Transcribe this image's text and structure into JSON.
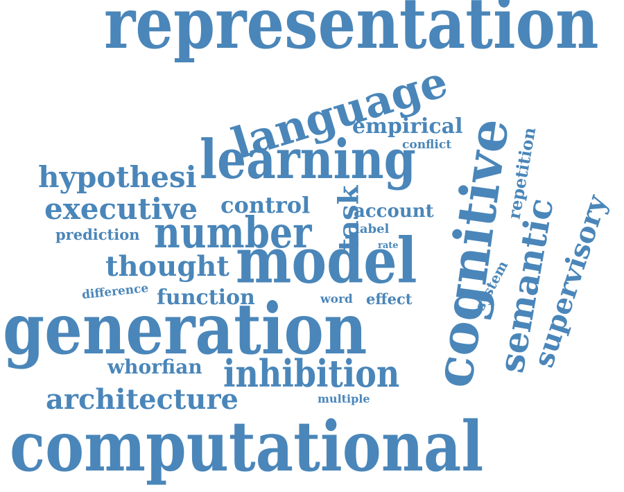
{
  "colors": {
    "word": "#4a86b9",
    "background": "#ffffff"
  },
  "words": {
    "representation": "representation",
    "language": "language",
    "empirical": "empirical",
    "conflict": "conflict",
    "cognitive": "cognitive",
    "repetition": "repetition",
    "hypothesi": "hypothesi",
    "learning": "learning",
    "executive": "executive",
    "control": "control",
    "account": "account",
    "task": "task",
    "label": "label",
    "prediction": "prediction",
    "number": "number",
    "rate": "rate",
    "semantic": "semantic",
    "supervisory": "supervisory",
    "system": "system",
    "thought": "thought",
    "model": "model",
    "difference": "difference",
    "function": "function",
    "word": "word",
    "effect": "effect",
    "generation": "generation",
    "whorfian": "whorfian",
    "inhibition": "inhibition",
    "architecture": "architecture",
    "multiple": "multiple",
    "computational": "computational"
  }
}
